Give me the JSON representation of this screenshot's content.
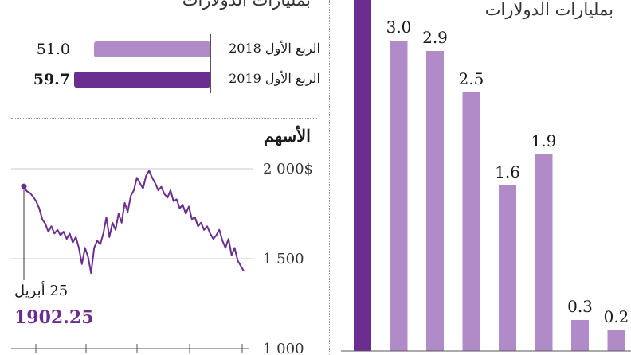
{
  "left_panel": {
    "unit": "بمليارات الدولارات",
    "comparison": {
      "rows": [
        {
          "label": "الربع الأول 2018",
          "value": "51.0",
          "numeric": 51.0,
          "color": "#b18ac8"
        },
        {
          "label": "الربع الأول 2019",
          "value": "59.7",
          "numeric": 59.7,
          "color": "#6b2d8f"
        }
      ]
    },
    "stock": {
      "title": "الأسهم",
      "y_ticks": [
        "2 000$",
        "1 500",
        "1 000"
      ],
      "annotation_date": "25 أبريل",
      "annotation_value": "1902.25",
      "line_color": "#6b2d8f",
      "annotation_color": "#6b2d8f"
    }
  },
  "right_panel": {
    "unit": "بمليارات الدولارات"
  },
  "colors": {
    "dark_purple": "#6b2d8f",
    "light_purple": "#b18ac8",
    "axis": "#555555"
  },
  "chart_data": [
    {
      "type": "bar",
      "orientation": "horizontal",
      "categories": [
        "الربع الأول 2018",
        "الربع الأول 2019"
      ],
      "values": [
        51.0,
        59.7
      ],
      "ylabel": "بمليارات الدولارات"
    },
    {
      "type": "line",
      "title": "الأسهم",
      "ylim": [
        1000,
        2000
      ],
      "y_ticks": [
        2000,
        1500,
        1000
      ],
      "series": [
        {
          "values": [
            1902,
            1875,
            1865,
            1845,
            1820,
            1780,
            1720,
            1695,
            1650,
            1680,
            1640,
            1660,
            1630,
            1650,
            1610,
            1640,
            1590,
            1620,
            1560,
            1470,
            1560,
            1510,
            1420,
            1560,
            1600,
            1580,
            1640,
            1730,
            1620,
            1700,
            1660,
            1750,
            1700,
            1810,
            1760,
            1850,
            1880,
            1950,
            1920,
            1890,
            1960,
            1990,
            1950,
            1920,
            1880,
            1900,
            1860,
            1840,
            1880,
            1820,
            1830,
            1780,
            1800,
            1750,
            1790,
            1720,
            1730,
            1680,
            1700,
            1660,
            1680,
            1640,
            1610,
            1630,
            1660,
            1600,
            1560,
            1610,
            1520,
            1560,
            1490,
            1460,
            1430
          ]
        }
      ]
    },
    {
      "type": "bar",
      "ylabel": "بمليارات الدولارات",
      "values": [
        null,
        3.0,
        2.9,
        2.5,
        1.6,
        1.9,
        0.3,
        0.2
      ],
      "labels": [
        "",
        "3.0",
        "2.9",
        "2.5",
        "1.6",
        "1.9",
        "0.3",
        "0.2"
      ],
      "highlight_first": true
    }
  ]
}
